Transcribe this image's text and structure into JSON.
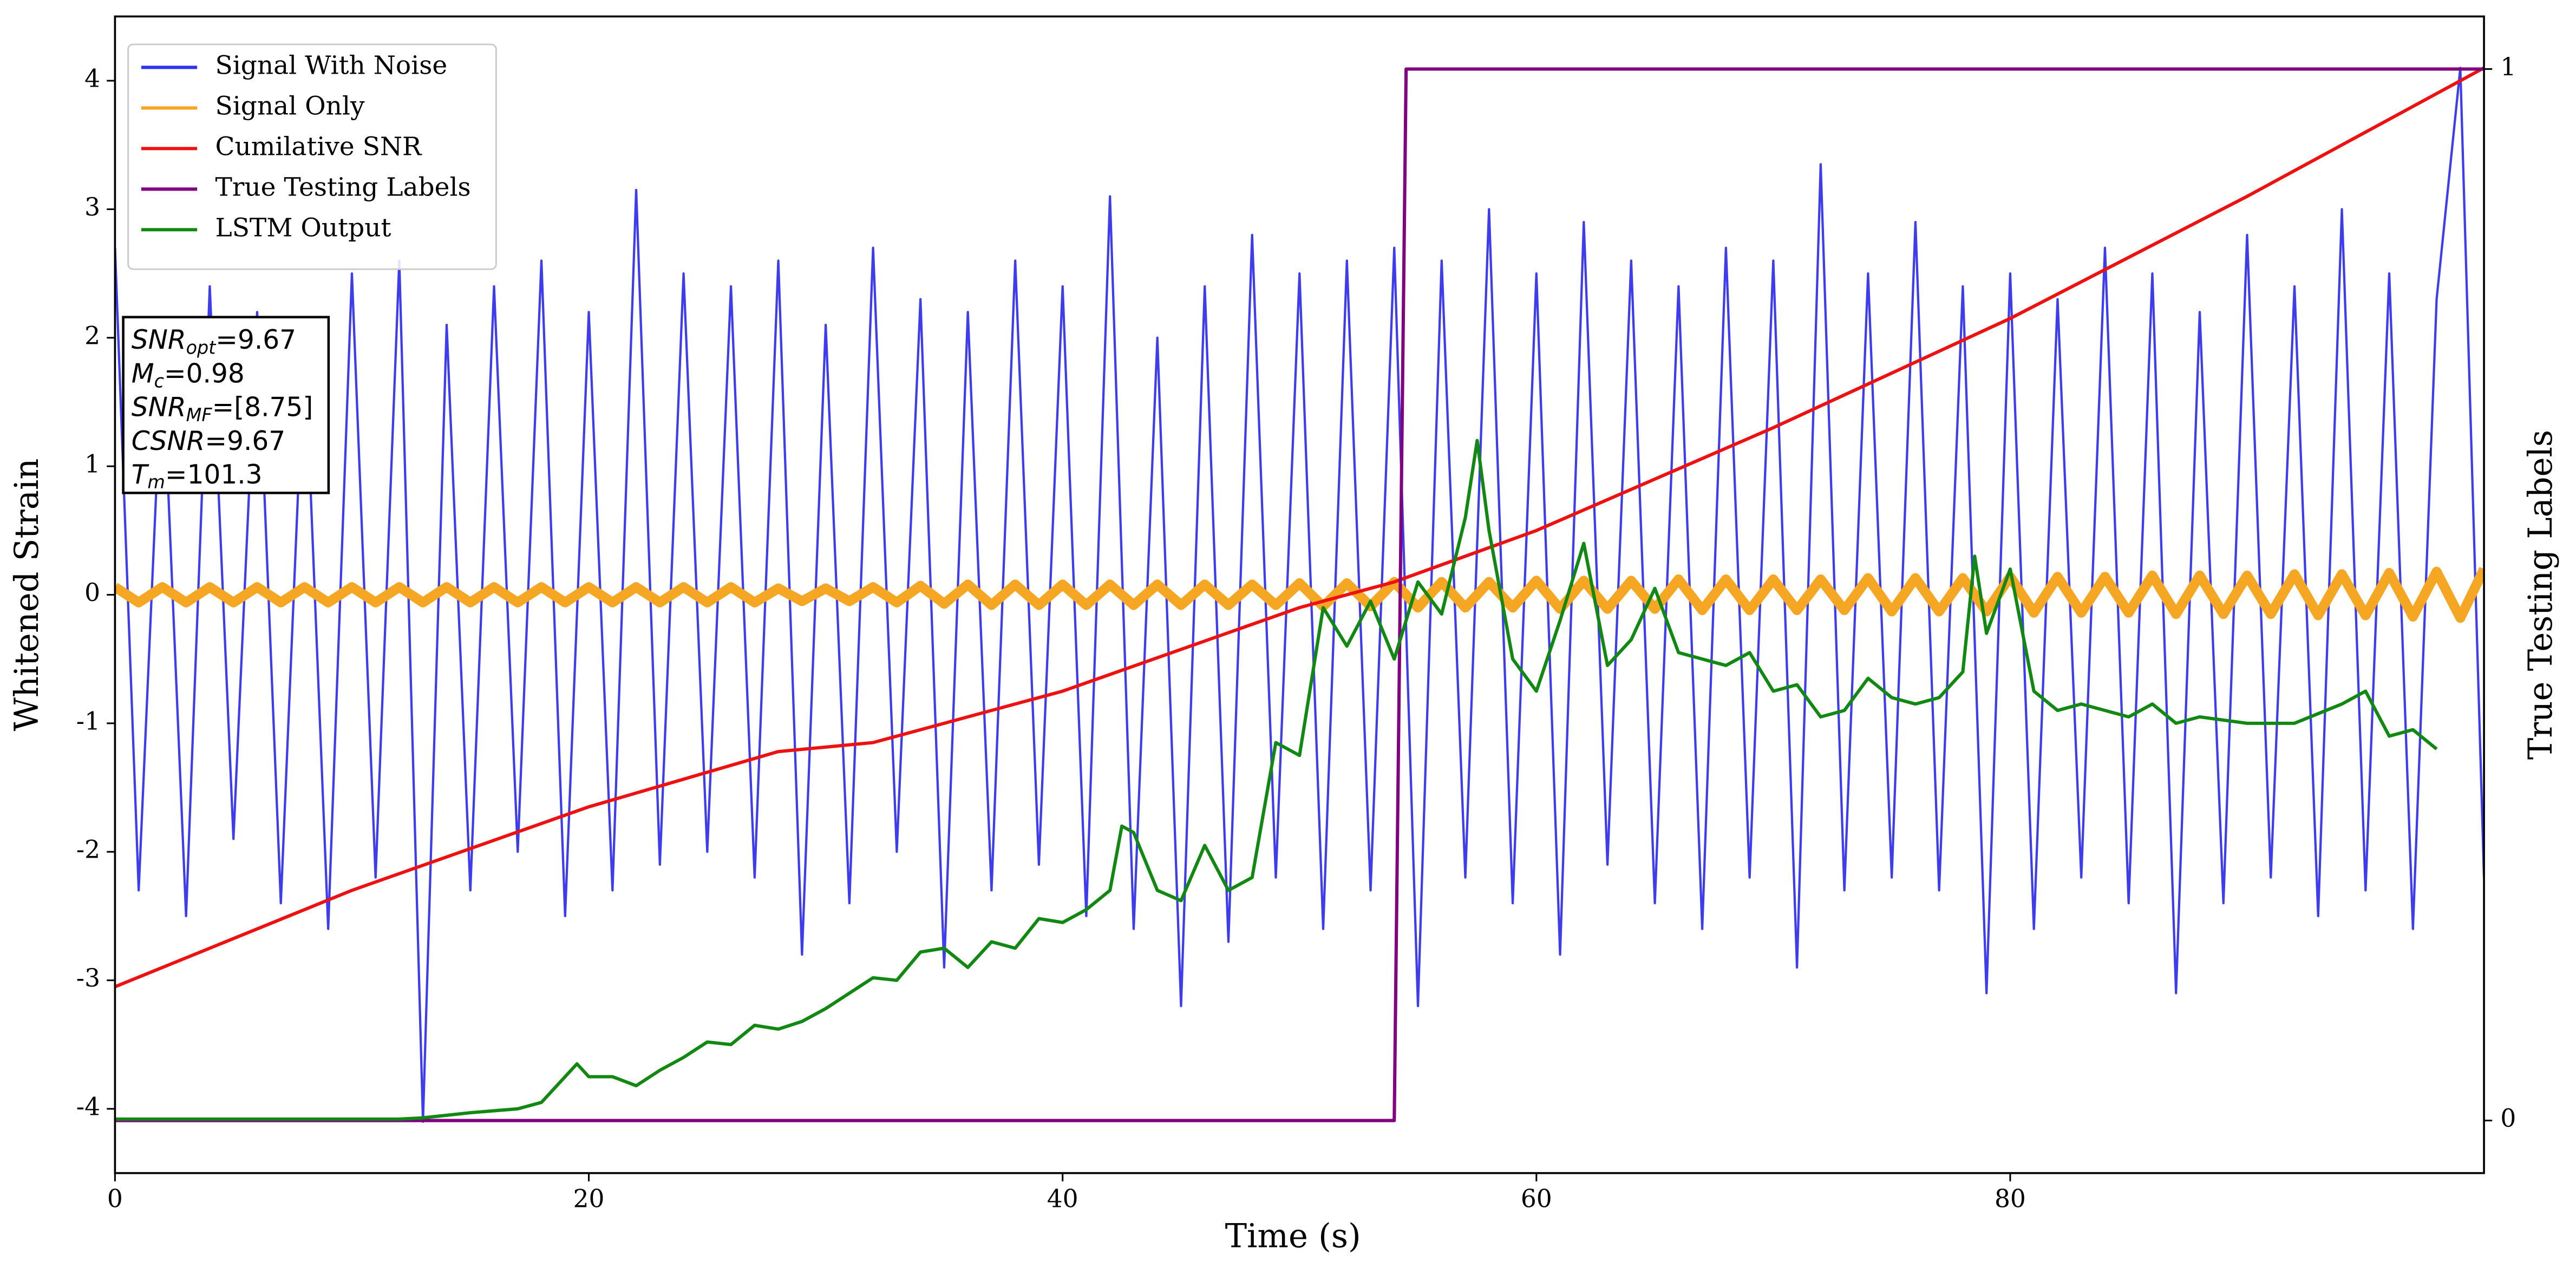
{
  "chart_data": {
    "type": "line",
    "xlabel": "Time (s)",
    "ylabel": "Whitened Strain",
    "y2label": "True Testing Labels",
    "xlim": [
      0,
      100
    ],
    "xticks": [
      0,
      20,
      40,
      60,
      80
    ],
    "ylim": [
      -4.5,
      4.5
    ],
    "yticks": [
      -4,
      -3,
      -2,
      -1,
      0,
      1,
      2,
      3,
      4
    ],
    "y2lim": [
      -0.05,
      1.05
    ],
    "y2ticks": [
      0,
      1
    ],
    "legend": "upper left",
    "annotations": [
      {
        "text": "SNR",
        "sub": "opt",
        "value": "=9.67"
      },
      {
        "text": "M",
        "sub": "c",
        "value": "=0.98"
      },
      {
        "text": "SNR",
        "sub": "MF",
        "value": "=[8.75]"
      },
      {
        "text": "CSNR",
        "value": "=9.67"
      },
      {
        "text": "T",
        "sub": "m",
        "value": "=101.3"
      }
    ],
    "series": [
      {
        "name": "Signal With Noise",
        "color": "#3333ee",
        "width": 1.4,
        "x": [
          0,
          1,
          2,
          3,
          4,
          5,
          6,
          7,
          8,
          9,
          10,
          11,
          12,
          13,
          14,
          15,
          16,
          17,
          18,
          19,
          20,
          21,
          22,
          23,
          24,
          25,
          26,
          27,
          28,
          29,
          30,
          31,
          32,
          33,
          34,
          35,
          36,
          37,
          38,
          39,
          40,
          41,
          42,
          43,
          44,
          45,
          46,
          47,
          48,
          49,
          50,
          51,
          52,
          53,
          54,
          55,
          56,
          57,
          58,
          59,
          60,
          61,
          62,
          63,
          64,
          65,
          66,
          67,
          68,
          69,
          70,
          71,
          72,
          73,
          74,
          75,
          76,
          77,
          78,
          79,
          80,
          81,
          82,
          83,
          84,
          85,
          86,
          87,
          88,
          89,
          90,
          91,
          92,
          93,
          94,
          95,
          96,
          97,
          98,
          99,
          100
        ],
        "values": [
          2.7,
          -2.3,
          1.9,
          -2.5,
          2.4,
          -1.9,
          2.2,
          -2.4,
          2.0,
          -2.6,
          2.5,
          -2.2,
          2.6,
          -4.1,
          2.1,
          -2.3,
          2.4,
          -2.0,
          2.6,
          -2.5,
          2.2,
          -2.3,
          3.15,
          -2.1,
          2.5,
          -2.0,
          2.4,
          -2.2,
          2.6,
          -2.8,
          2.1,
          -2.4,
          2.7,
          -2.0,
          2.3,
          -2.9,
          2.2,
          -2.3,
          2.6,
          -2.1,
          2.4,
          -2.5,
          3.1,
          -2.6,
          2.0,
          -3.2,
          2.4,
          -2.7,
          2.8,
          -2.2,
          2.5,
          -2.6,
          2.6,
          -2.3,
          2.7,
          -3.2,
          2.6,
          -2.2,
          3.0,
          -2.4,
          2.5,
          -2.8,
          2.9,
          -2.1,
          2.6,
          -2.4,
          2.4,
          -2.6,
          2.7,
          -2.2,
          2.6,
          -2.9,
          3.35,
          -2.3,
          2.5,
          -2.2,
          2.9,
          -2.3,
          2.4,
          -3.1,
          2.5,
          -2.6,
          2.3,
          -2.2,
          2.7,
          -2.4,
          2.5,
          -3.1,
          2.2,
          -2.4,
          2.8,
          -2.2,
          2.4,
          -2.5,
          3.0,
          -2.3,
          2.5,
          -2.6,
          2.3,
          4.1,
          -2.2
        ]
      },
      {
        "name": "Signal Only",
        "color": "#f5a623",
        "width": 6,
        "x": [
          0,
          1,
          2,
          3,
          4,
          5,
          6,
          7,
          8,
          9,
          10,
          11,
          12,
          13,
          14,
          15,
          16,
          17,
          18,
          19,
          20,
          21,
          22,
          23,
          24,
          25,
          26,
          27,
          28,
          29,
          30,
          31,
          32,
          33,
          34,
          35,
          36,
          37,
          38,
          39,
          40,
          41,
          42,
          43,
          44,
          45,
          46,
          47,
          48,
          49,
          50,
          51,
          52,
          53,
          54,
          55,
          56,
          57,
          58,
          59,
          60,
          61,
          62,
          63,
          64,
          65,
          66,
          67,
          68,
          69,
          70,
          71,
          72,
          73,
          74,
          75,
          76,
          77,
          78,
          79,
          80,
          81,
          82,
          83,
          84,
          85,
          86,
          87,
          88,
          89,
          90,
          91,
          92,
          93,
          94,
          95,
          96,
          97,
          98,
          99,
          100
        ],
        "values": [
          0.06,
          -0.06,
          0.06,
          -0.06,
          0.06,
          -0.06,
          0.06,
          -0.06,
          0.06,
          -0.06,
          0.06,
          -0.06,
          0.06,
          -0.06,
          0.06,
          -0.06,
          0.06,
          -0.06,
          0.06,
          -0.06,
          0.06,
          -0.06,
          0.06,
          -0.06,
          0.06,
          -0.06,
          0.06,
          -0.06,
          0.05,
          -0.05,
          0.05,
          -0.05,
          0.06,
          -0.06,
          0.07,
          -0.07,
          0.08,
          -0.08,
          0.08,
          -0.08,
          0.08,
          -0.08,
          0.08,
          -0.08,
          0.08,
          -0.08,
          0.08,
          -0.08,
          0.08,
          -0.08,
          0.09,
          -0.09,
          0.09,
          -0.09,
          0.1,
          -0.1,
          0.1,
          -0.1,
          0.1,
          -0.1,
          0.11,
          -0.11,
          0.11,
          -0.11,
          0.11,
          -0.11,
          0.12,
          -0.12,
          0.12,
          -0.12,
          0.12,
          -0.12,
          0.12,
          -0.12,
          0.13,
          -0.13,
          0.13,
          -0.13,
          0.13,
          -0.13,
          0.14,
          -0.14,
          0.14,
          -0.14,
          0.14,
          -0.14,
          0.15,
          -0.15,
          0.15,
          -0.15,
          0.15,
          -0.15,
          0.16,
          -0.16,
          0.16,
          -0.16,
          0.17,
          -0.17,
          0.18,
          -0.18,
          0.2
        ]
      },
      {
        "name": "Cumilative SNR",
        "color": "#ee1111",
        "width": 2,
        "x": [
          0,
          10,
          20,
          28,
          32,
          40,
          50,
          54,
          60,
          70,
          80,
          90,
          100
        ],
        "values": [
          -3.05,
          -2.3,
          -1.65,
          -1.22,
          -1.15,
          -0.75,
          -0.1,
          0.1,
          0.5,
          1.3,
          2.15,
          3.1,
          4.1
        ]
      },
      {
        "name": "True Testing Labels",
        "color": "#800080",
        "width": 2,
        "axis": "y2",
        "x": [
          0,
          54,
          54.5,
          100
        ],
        "values": [
          0,
          0,
          1,
          1
        ]
      },
      {
        "name": "LSTM Output",
        "color": "#118811",
        "width": 2,
        "x": [
          0,
          12,
          13,
          15,
          17,
          18,
          19.5,
          20,
          21,
          22,
          23,
          24,
          25,
          26,
          27,
          28,
          29,
          30,
          31,
          32,
          33,
          34,
          35,
          36,
          37,
          38,
          39,
          40,
          41,
          42,
          42.5,
          43,
          44,
          45,
          46,
          47,
          48,
          49,
          50,
          51,
          52,
          53,
          54,
          55,
          56,
          57,
          57.5,
          58,
          59,
          60,
          61,
          62,
          63,
          64,
          65,
          66,
          67,
          68,
          69,
          70,
          71,
          72,
          73,
          74,
          75,
          76,
          77,
          78,
          78.5,
          79,
          80,
          81,
          82,
          83,
          85,
          86,
          87,
          88,
          90,
          92,
          94,
          95,
          96,
          97,
          98
        ],
        "values": [
          -4.08,
          -4.08,
          -4.07,
          -4.03,
          -4.0,
          -3.95,
          -3.65,
          -3.75,
          -3.75,
          -3.82,
          -3.7,
          -3.6,
          -3.48,
          -3.5,
          -3.35,
          -3.38,
          -3.32,
          -3.22,
          -3.1,
          -2.98,
          -3.0,
          -2.78,
          -2.75,
          -2.9,
          -2.7,
          -2.75,
          -2.52,
          -2.55,
          -2.45,
          -2.3,
          -1.8,
          -1.85,
          -2.3,
          -2.38,
          -1.95,
          -2.3,
          -2.2,
          -1.15,
          -1.25,
          -0.1,
          -0.4,
          -0.05,
          -0.5,
          0.1,
          -0.15,
          0.6,
          1.2,
          0.5,
          -0.5,
          -0.75,
          -0.2,
          0.4,
          -0.55,
          -0.35,
          0.05,
          -0.45,
          -0.5,
          -0.55,
          -0.45,
          -0.75,
          -0.7,
          -0.95,
          -0.9,
          -0.65,
          -0.8,
          -0.85,
          -0.8,
          -0.6,
          0.3,
          -0.3,
          0.2,
          -0.75,
          -0.9,
          -0.85,
          -0.95,
          -0.85,
          -1.0,
          -0.95,
          -1.0,
          -1.0,
          -0.85,
          -0.75,
          -1.1,
          -1.05,
          -1.2
        ]
      }
    ]
  }
}
